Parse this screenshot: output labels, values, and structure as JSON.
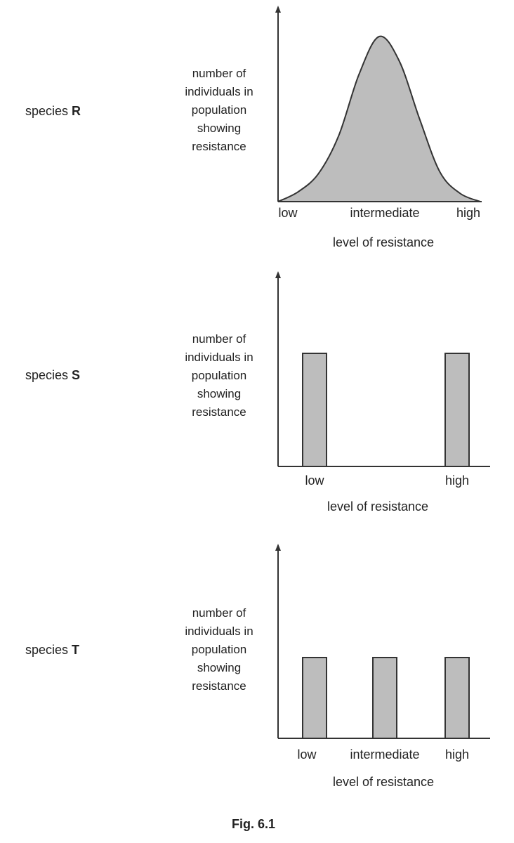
{
  "figure_caption": "Fig. 6.1",
  "colors": {
    "fill": "#bdbdbd",
    "stroke": "#333333"
  },
  "chart_data": [
    {
      "type": "area",
      "panel_label_prefix": "species",
      "panel_label_letter": "R",
      "ylabel_lines": [
        "number of",
        "individuals in",
        "population",
        "showing",
        "resistance"
      ],
      "xlabel": "level of resistance",
      "tick_labels": [
        "low",
        "intermediate",
        "high"
      ],
      "distribution": "bell-shaped curve peaking at intermediate",
      "x": [
        0,
        0.1,
        0.2,
        0.3,
        0.4,
        0.5,
        0.6,
        0.7,
        0.8,
        0.9,
        1.0
      ],
      "y": [
        0.0,
        0.06,
        0.17,
        0.4,
        0.77,
        1.0,
        0.85,
        0.5,
        0.18,
        0.05,
        0.0
      ]
    },
    {
      "type": "bar",
      "panel_label_prefix": "species",
      "panel_label_letter": "S",
      "ylabel_lines": [
        "number of",
        "individuals in",
        "population",
        "showing",
        "resistance"
      ],
      "xlabel": "level of resistance",
      "categories": [
        "low",
        "high"
      ],
      "values": [
        1,
        1
      ]
    },
    {
      "type": "bar",
      "panel_label_prefix": "species",
      "panel_label_letter": "T",
      "ylabel_lines": [
        "number of",
        "individuals in",
        "population",
        "showing",
        "resistance"
      ],
      "xlabel": "level of resistance",
      "categories": [
        "low",
        "intermediate",
        "high"
      ],
      "values": [
        1,
        1,
        1
      ]
    }
  ]
}
